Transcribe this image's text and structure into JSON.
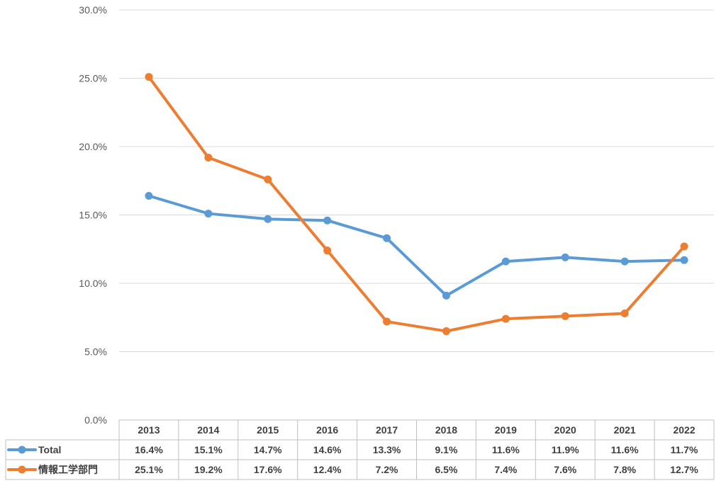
{
  "chart_data": {
    "type": "line",
    "categories": [
      "2013",
      "2014",
      "2015",
      "2016",
      "2017",
      "2018",
      "2019",
      "2020",
      "2021",
      "2022"
    ],
    "yticks": [
      "0.0%",
      "5.0%",
      "10.0%",
      "15.0%",
      "20.0%",
      "25.0%",
      "30.0%"
    ],
    "ylim": [
      0,
      30
    ],
    "grid": true,
    "legend": "data-table",
    "series": [
      {
        "name": "Total",
        "color": "#5B9BD5",
        "values": [
          16.4,
          15.1,
          14.7,
          14.6,
          13.3,
          9.1,
          11.6,
          11.9,
          11.6,
          11.7
        ],
        "labels": [
          "16.4%",
          "15.1%",
          "14.7%",
          "14.6%",
          "13.3%",
          "9.1%",
          "11.6%",
          "11.9%",
          "11.6%",
          "11.7%"
        ]
      },
      {
        "name": "情報工学部門",
        "color": "#ED7D31",
        "values": [
          25.1,
          19.2,
          17.6,
          12.4,
          7.2,
          6.5,
          7.4,
          7.6,
          7.8,
          12.7
        ],
        "labels": [
          "25.1%",
          "19.2%",
          "17.6%",
          "12.4%",
          "7.2%",
          "6.5%",
          "7.4%",
          "7.6%",
          "7.8%",
          "12.7%"
        ]
      }
    ]
  }
}
